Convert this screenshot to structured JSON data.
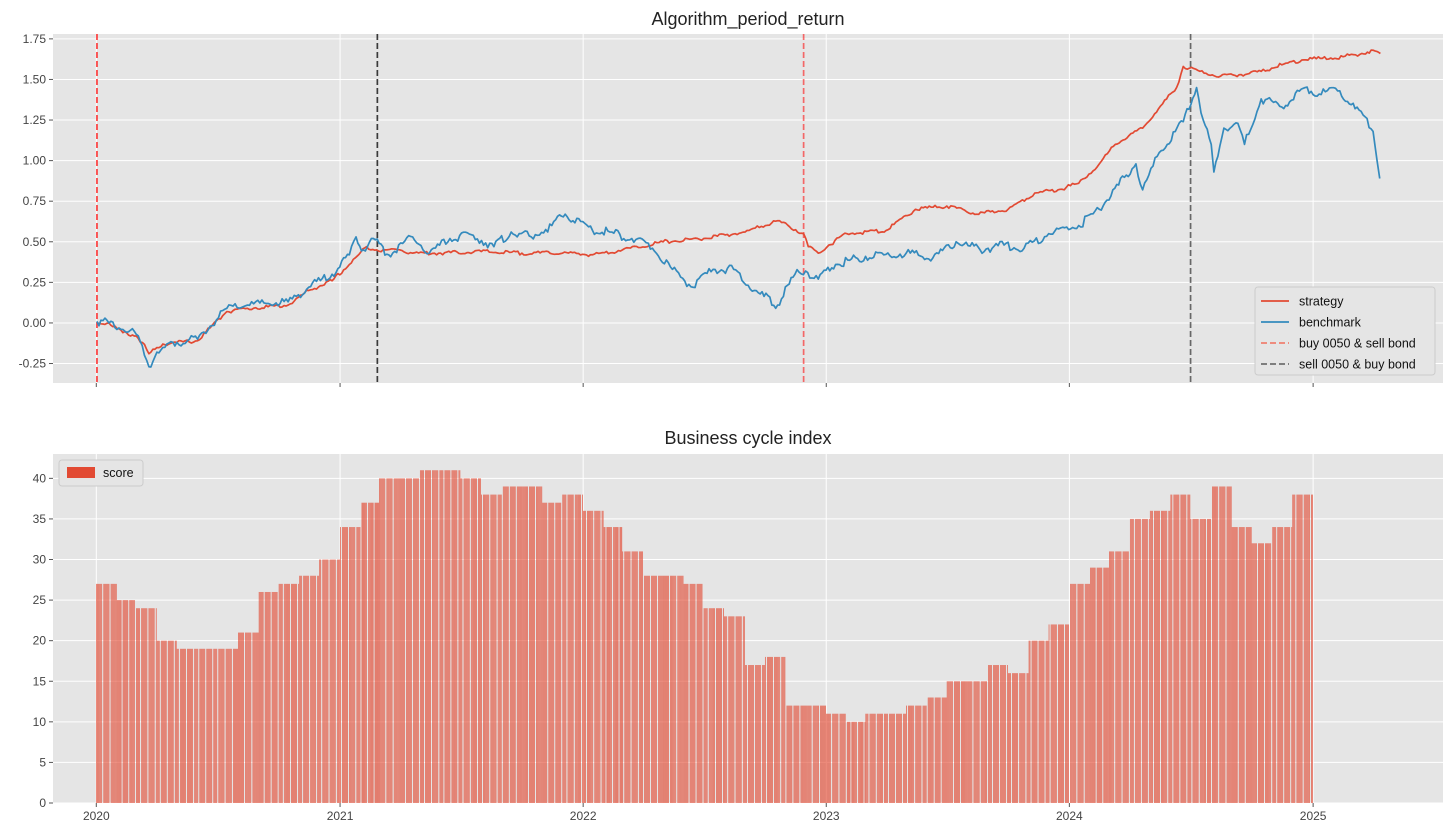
{
  "chart_data": [
    {
      "type": "line",
      "title": "Algorithm_period_return",
      "xlabel": "",
      "ylabel": "",
      "x_range": [
        "2019-10-28",
        "2025-07-15"
      ],
      "xlim": [
        "2019-10-28",
        "2025-07-15"
      ],
      "ylim": [
        -0.37,
        1.78
      ],
      "yticks": [
        -0.25,
        0.0,
        0.25,
        0.5,
        0.75,
        1.0,
        1.25,
        1.5,
        1.75
      ],
      "ytick_labels": [
        "-0.25",
        "0.00",
        "0.25",
        "0.50",
        "0.75",
        "1.00",
        "1.25",
        "1.50",
        "1.75"
      ],
      "grid": true,
      "legend_position": "lower-right",
      "series": [
        {
          "name": "strategy",
          "color": "#E24A33",
          "points": [
            [
              "2020-01-02",
              0.0
            ],
            [
              "2020-01-20",
              0.0
            ],
            [
              "2020-02-10",
              -0.06
            ],
            [
              "2020-03-01",
              -0.08
            ],
            [
              "2020-03-10",
              -0.12
            ],
            [
              "2020-03-20",
              -0.19
            ],
            [
              "2020-04-10",
              -0.13
            ],
            [
              "2020-05-01",
              -0.12
            ],
            [
              "2020-06-01",
              -0.11
            ],
            [
              "2020-06-20",
              -0.03
            ],
            [
              "2020-07-15",
              0.07
            ],
            [
              "2020-08-15",
              0.09
            ],
            [
              "2020-09-15",
              0.1
            ],
            [
              "2020-10-15",
              0.11
            ],
            [
              "2020-11-15",
              0.2
            ],
            [
              "2020-12-20",
              0.26
            ],
            [
              "2021-01-15",
              0.36
            ],
            [
              "2021-02-10",
              0.47
            ],
            [
              "2021-02-25",
              0.45
            ],
            [
              "2021-03-10",
              0.45
            ],
            [
              "2021-04-01",
              0.45
            ],
            [
              "2021-04-20",
              0.43
            ],
            [
              "2021-06-01",
              0.43
            ],
            [
              "2021-08-01",
              0.44
            ],
            [
              "2021-10-01",
              0.43
            ],
            [
              "2021-12-01",
              0.43
            ],
            [
              "2022-01-15",
              0.42
            ],
            [
              "2022-03-01",
              0.45
            ],
            [
              "2022-05-01",
              0.5
            ],
            [
              "2022-07-01",
              0.52
            ],
            [
              "2022-09-01",
              0.56
            ],
            [
              "2022-10-20",
              0.63
            ],
            [
              "2022-11-28",
              0.55
            ],
            [
              "2022-12-05",
              0.47
            ],
            [
              "2022-12-20",
              0.43
            ],
            [
              "2023-01-05",
              0.48
            ],
            [
              "2023-02-01",
              0.55
            ],
            [
              "2023-04-01",
              0.57
            ],
            [
              "2023-05-15",
              0.7
            ],
            [
              "2023-07-01",
              0.72
            ],
            [
              "2023-08-15",
              0.67
            ],
            [
              "2023-10-01",
              0.7
            ],
            [
              "2023-11-10",
              0.8
            ],
            [
              "2023-12-15",
              0.82
            ],
            [
              "2024-01-15",
              0.86
            ],
            [
              "2024-02-15",
              0.98
            ],
            [
              "2024-03-10",
              1.1
            ],
            [
              "2024-04-20",
              1.2
            ],
            [
              "2024-05-20",
              1.35
            ],
            [
              "2024-06-10",
              1.45
            ],
            [
              "2024-06-20",
              1.58
            ],
            [
              "2024-07-15",
              1.55
            ],
            [
              "2024-08-15",
              1.52
            ],
            [
              "2024-09-15",
              1.53
            ],
            [
              "2024-10-15",
              1.55
            ],
            [
              "2024-11-15",
              1.59
            ],
            [
              "2024-12-15",
              1.62
            ],
            [
              "2025-01-15",
              1.63
            ],
            [
              "2025-02-15",
              1.64
            ],
            [
              "2025-03-15",
              1.66
            ],
            [
              "2025-04-01",
              1.68
            ],
            [
              "2025-04-12",
              1.66
            ]
          ]
        },
        {
          "name": "benchmark",
          "color": "#348ABD",
          "points": [
            [
              "2020-01-02",
              0.01
            ],
            [
              "2020-01-20",
              0.0
            ],
            [
              "2020-02-10",
              -0.04
            ],
            [
              "2020-03-01",
              -0.07
            ],
            [
              "2020-03-10",
              -0.14
            ],
            [
              "2020-03-20",
              -0.27
            ],
            [
              "2020-04-01",
              -0.18
            ],
            [
              "2020-05-01",
              -0.12
            ],
            [
              "2020-06-01",
              -0.1
            ],
            [
              "2020-06-20",
              -0.02
            ],
            [
              "2020-07-15",
              0.09
            ],
            [
              "2020-08-15",
              0.11
            ],
            [
              "2020-09-15",
              0.12
            ],
            [
              "2020-10-15",
              0.13
            ],
            [
              "2020-11-15",
              0.22
            ],
            [
              "2020-12-20",
              0.3
            ],
            [
              "2021-01-15",
              0.42
            ],
            [
              "2021-01-25",
              0.53
            ],
            [
              "2021-02-05",
              0.45
            ],
            [
              "2021-02-20",
              0.52
            ],
            [
              "2021-03-15",
              0.42
            ],
            [
              "2021-04-20",
              0.53
            ],
            [
              "2021-05-15",
              0.43
            ],
            [
              "2021-06-15",
              0.52
            ],
            [
              "2021-07-20",
              0.54
            ],
            [
              "2021-08-20",
              0.47
            ],
            [
              "2021-09-15",
              0.56
            ],
            [
              "2021-10-15",
              0.53
            ],
            [
              "2021-11-15",
              0.6
            ],
            [
              "2021-12-05",
              0.67
            ],
            [
              "2022-01-15",
              0.57
            ],
            [
              "2022-02-10",
              0.56
            ],
            [
              "2022-03-15",
              0.52
            ],
            [
              "2022-04-15",
              0.46
            ],
            [
              "2022-05-15",
              0.33
            ],
            [
              "2022-06-15",
              0.22
            ],
            [
              "2022-07-15",
              0.33
            ],
            [
              "2022-08-15",
              0.33
            ],
            [
              "2022-09-15",
              0.2
            ],
            [
              "2022-10-20",
              0.11
            ],
            [
              "2022-11-15",
              0.3
            ],
            [
              "2022-12-01",
              0.32
            ],
            [
              "2022-12-20",
              0.27
            ],
            [
              "2023-01-15",
              0.36
            ],
            [
              "2023-03-01",
              0.41
            ],
            [
              "2023-05-01",
              0.43
            ],
            [
              "2023-06-10",
              0.4
            ],
            [
              "2023-07-15",
              0.5
            ],
            [
              "2023-08-20",
              0.45
            ],
            [
              "2023-09-25",
              0.48
            ],
            [
              "2023-10-25",
              0.46
            ],
            [
              "2023-12-01",
              0.55
            ],
            [
              "2024-01-15",
              0.6
            ],
            [
              "2024-02-15",
              0.7
            ],
            [
              "2024-03-15",
              0.85
            ],
            [
              "2024-04-10",
              0.98
            ],
            [
              "2024-04-20",
              0.82
            ],
            [
              "2024-05-15",
              1.05
            ],
            [
              "2024-06-20",
              1.24
            ],
            [
              "2024-07-10",
              1.45
            ],
            [
              "2024-07-20",
              1.25
            ],
            [
              "2024-08-01",
              1.1
            ],
            [
              "2024-08-05",
              0.93
            ],
            [
              "2024-08-20",
              1.2
            ],
            [
              "2024-09-10",
              1.23
            ],
            [
              "2024-09-20",
              1.1
            ],
            [
              "2024-10-15",
              1.38
            ],
            [
              "2024-11-15",
              1.33
            ],
            [
              "2024-12-20",
              1.45
            ],
            [
              "2025-01-10",
              1.41
            ],
            [
              "2025-02-10",
              1.43
            ],
            [
              "2025-03-05",
              1.32
            ],
            [
              "2025-03-20",
              1.27
            ],
            [
              "2025-04-01",
              1.18
            ],
            [
              "2025-04-07",
              1.0
            ],
            [
              "2025-04-11",
              0.89
            ]
          ]
        }
      ],
      "vlines": [
        {
          "name": "buy 0050 & sell bond",
          "x": "2020-01-02",
          "color": "#FF0000",
          "alpha": 0.75
        },
        {
          "name": "sell 0050 & buy bond",
          "x": "2021-02-26",
          "color": "#000000",
          "alpha": 0.75
        },
        {
          "name": "buy 0050 & sell bond",
          "x": "2022-11-28",
          "color": "#FF0000",
          "alpha": 0.55
        },
        {
          "name": "sell 0050 & buy bond",
          "x": "2024-07-01",
          "color": "#000000",
          "alpha": 0.55
        }
      ],
      "legend": [
        {
          "label": "strategy",
          "color": "#E24A33",
          "dash": false
        },
        {
          "label": "benchmark",
          "color": "#348ABD",
          "dash": false
        },
        {
          "label": "buy 0050 & sell bond",
          "color": "#F08070",
          "dash": true
        },
        {
          "label": "sell 0050 & buy bond",
          "color": "#707070",
          "dash": true
        }
      ]
    },
    {
      "type": "bar",
      "title": "Business cycle index",
      "xlabel": "",
      "ylabel": "",
      "xlim": [
        "2019-10-28",
        "2025-07-15"
      ],
      "ylim": [
        0,
        43
      ],
      "yticks": [
        0,
        5,
        10,
        15,
        20,
        25,
        30,
        35,
        40
      ],
      "xticks": [
        "2020-01-01",
        "2021-01-01",
        "2022-01-01",
        "2023-01-01",
        "2024-01-01",
        "2025-01-01"
      ],
      "xtick_labels": [
        "2020",
        "2021",
        "2022",
        "2023",
        "2024",
        "2025"
      ],
      "grid": true,
      "legend_position": "top-left",
      "series": [
        {
          "name": "score",
          "color": "#E24A33",
          "monthly_start": "2020-01",
          "values": [
            27,
            25,
            24,
            20,
            19,
            19,
            19,
            21,
            26,
            27,
            28,
            30,
            34,
            37,
            40,
            40,
            41,
            41,
            40,
            38,
            39,
            39,
            37,
            38,
            36,
            34,
            31,
            28,
            28,
            27,
            24,
            23,
            17,
            18,
            12,
            12,
            11,
            10,
            11,
            11,
            12,
            13,
            15,
            15,
            17,
            16,
            20,
            22,
            27,
            29,
            31,
            35,
            36,
            38,
            35,
            39,
            34,
            32,
            34,
            38
          ]
        }
      ],
      "legend": [
        {
          "label": "score",
          "color": "#E24A33"
        }
      ]
    }
  ]
}
